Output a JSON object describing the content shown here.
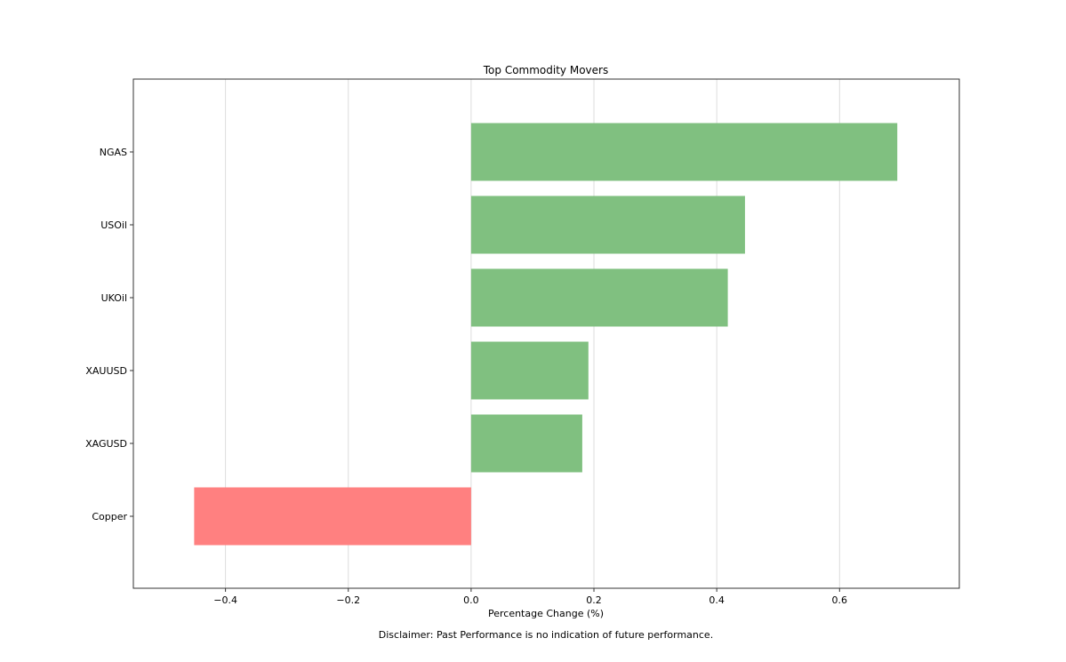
{
  "chart_data": {
    "type": "bar",
    "orientation": "horizontal",
    "title": "Top Commodity Movers",
    "xlabel": "Percentage Change (%)",
    "ylabel": "",
    "categories": [
      "NGAS",
      "USOil",
      "UKOil",
      "XAUUSD",
      "XAGUSD",
      "Copper"
    ],
    "values": [
      0.694,
      0.446,
      0.418,
      0.191,
      0.181,
      -0.451
    ],
    "xlim": [
      -0.55,
      0.795
    ],
    "xticks": [
      -0.4,
      -0.2,
      0.0,
      0.2,
      0.4,
      0.6
    ],
    "xtick_labels": [
      "−0.4",
      "−0.2",
      "0.0",
      "0.2",
      "0.4",
      "0.6"
    ],
    "grid": "x",
    "legend": "none",
    "colors": {
      "positive": "#80c080",
      "negative": "#ff8080",
      "grid": "#dcdcdc",
      "frame": "#333333"
    }
  },
  "footer": {
    "disclaimer": "Disclaimer: Past Performance is no indication of future performance."
  }
}
